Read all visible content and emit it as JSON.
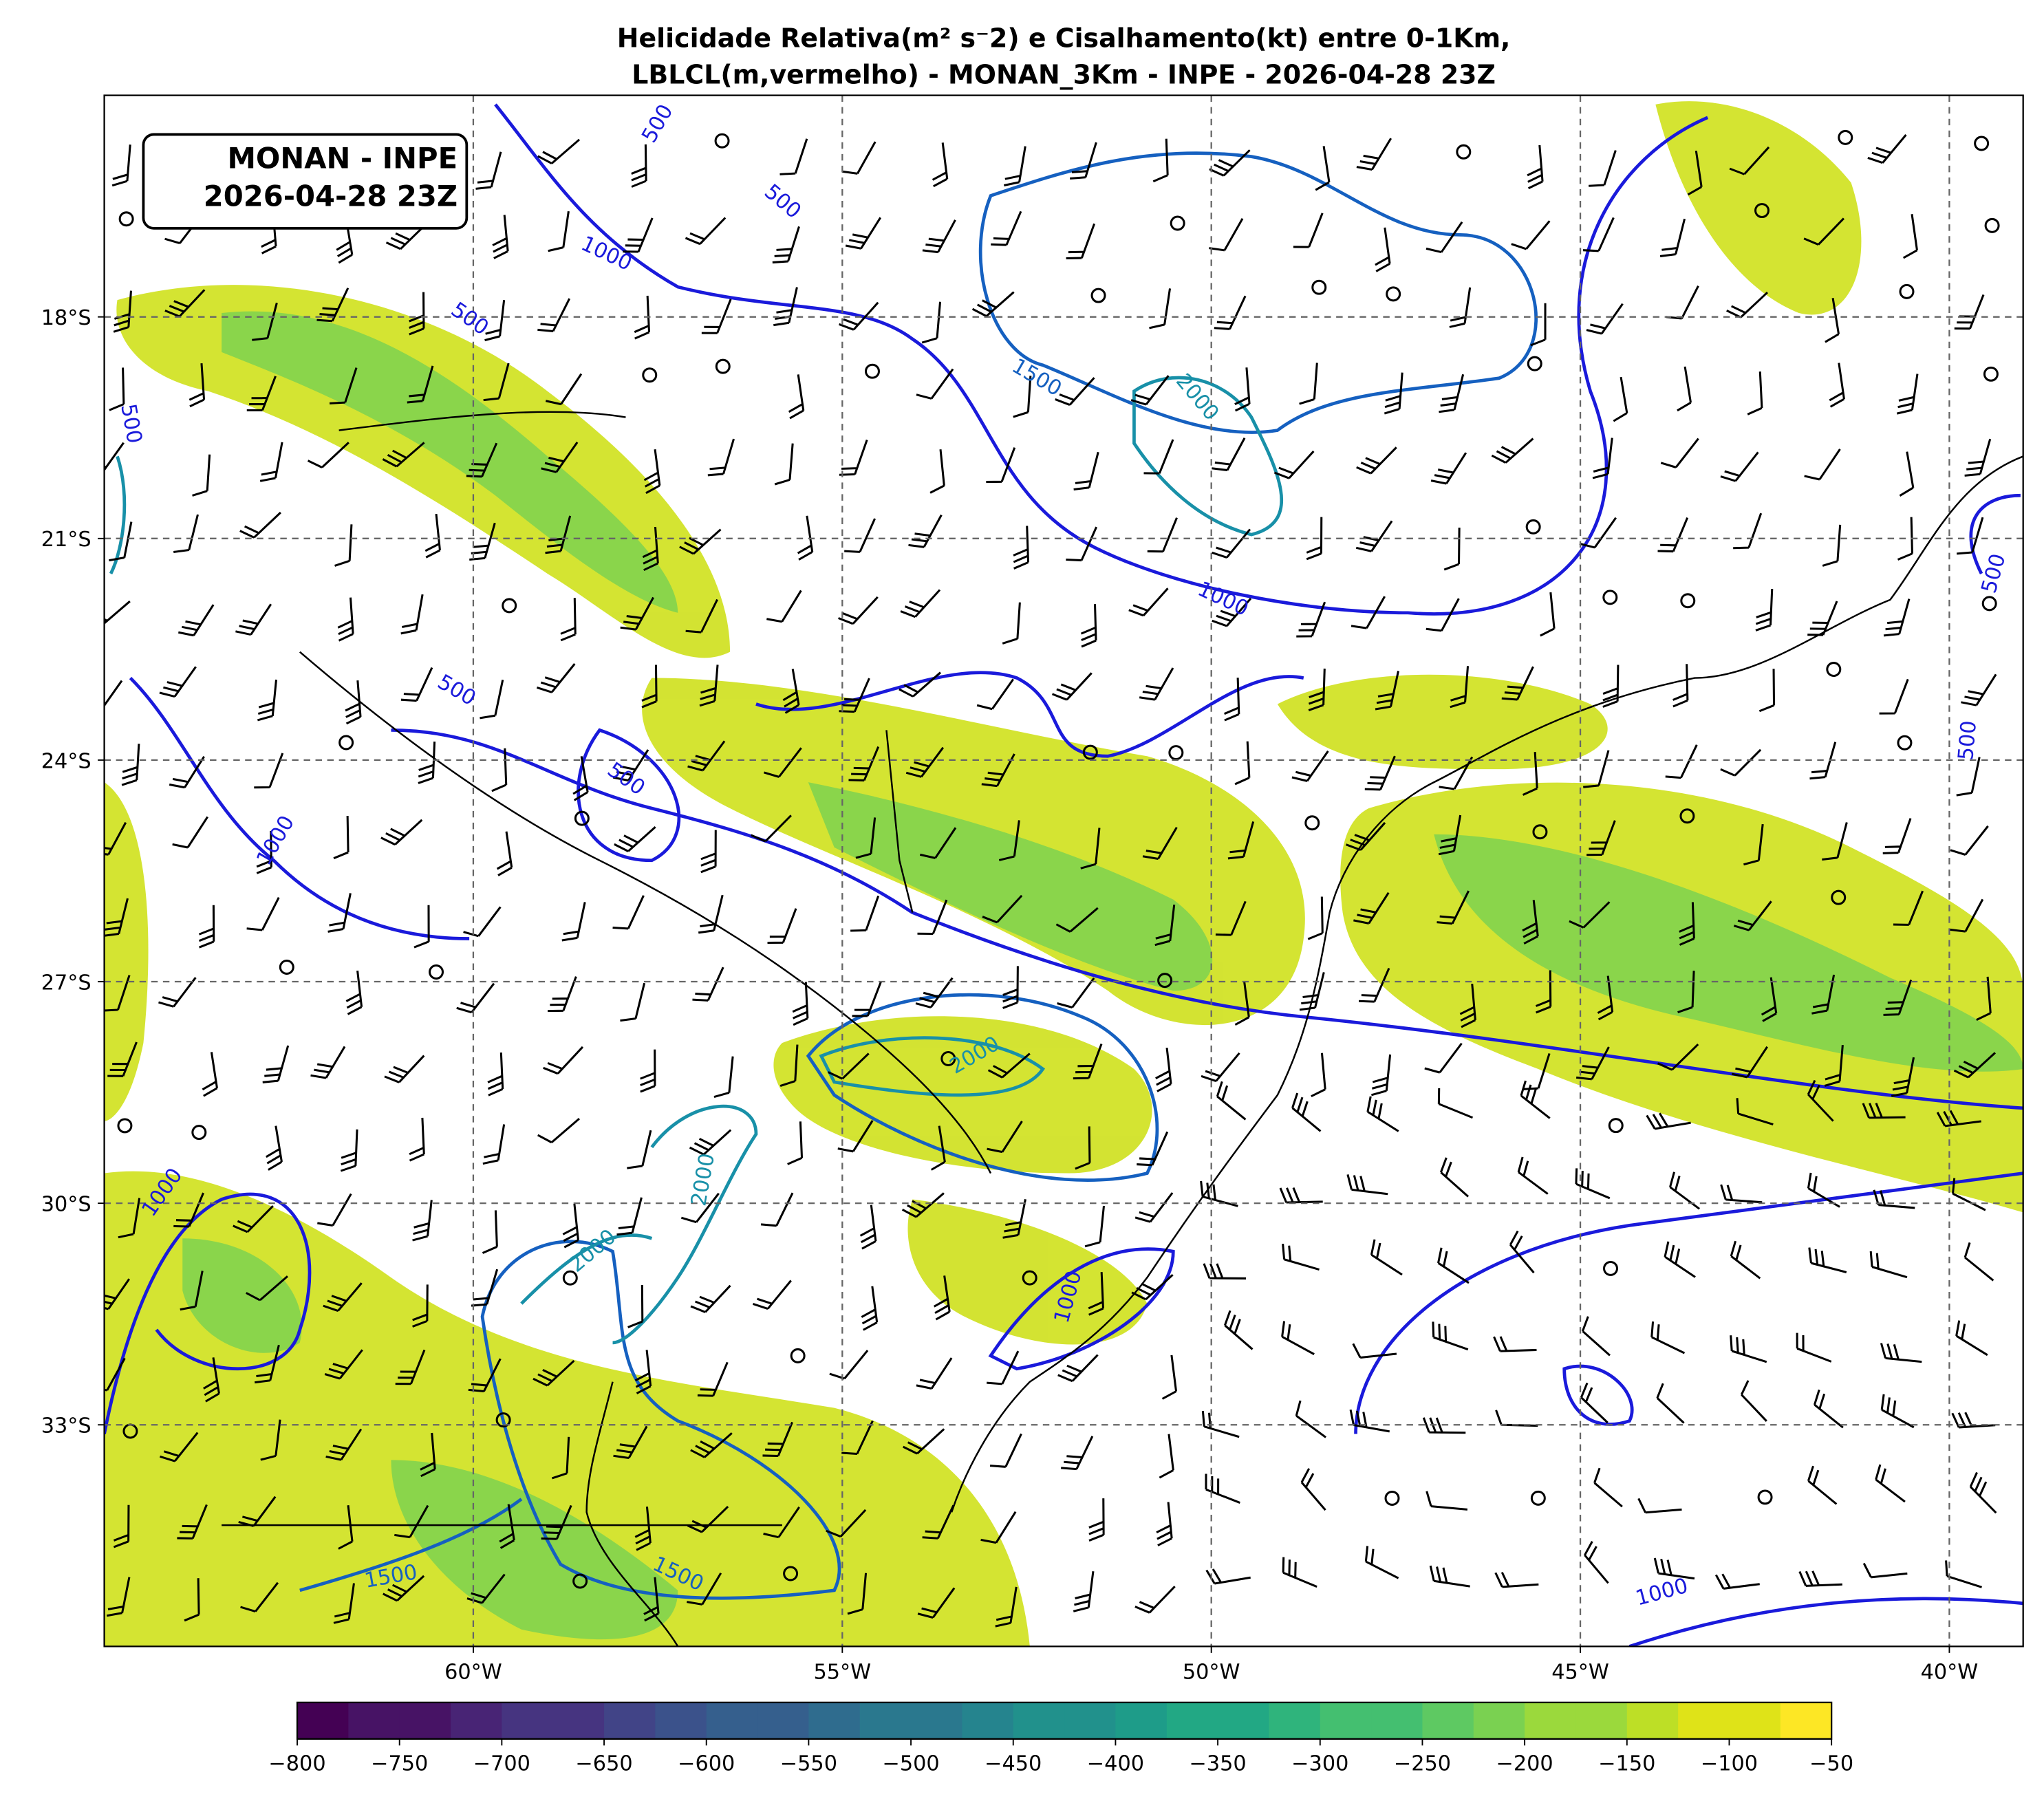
{
  "title": [
    "Helicidade Relativa(m² s⁻2) e Cisalhamento(kt) entre 0-1Km,",
    "LBLCL(m,vermelho) - MONAN_3Km - INPE - 2026-04-28 23Z"
  ],
  "annotation": [
    "MONAN - INPE",
    "2026-04-28 23Z"
  ],
  "map": {
    "xlim": [
      -65,
      -39
    ],
    "ylim": [
      -36,
      -15
    ],
    "xticks": [
      {
        "value": -60,
        "label": "60°W"
      },
      {
        "value": -55,
        "label": "55°W"
      },
      {
        "value": -50,
        "label": "50°W"
      },
      {
        "value": -45,
        "label": "45°W"
      },
      {
        "value": -40,
        "label": "40°W"
      }
    ],
    "yticks": [
      {
        "value": -18,
        "label": "18°S"
      },
      {
        "value": -21,
        "label": "21°S"
      },
      {
        "value": -24,
        "label": "24°S"
      },
      {
        "value": -27,
        "label": "27°S"
      },
      {
        "value": -30,
        "label": "30°S"
      },
      {
        "value": -33,
        "label": "33°S"
      }
    ],
    "contour_labels": [
      500,
      500,
      1000,
      500,
      500,
      1500,
      2000,
      1000,
      500,
      500,
      500,
      1000,
      500,
      2000,
      2000,
      1000,
      2000,
      1000,
      1500,
      1500,
      1000
    ]
  },
  "colorbar": {
    "lim": [
      -800,
      -50
    ],
    "ticks": [
      {
        "value": -800,
        "label": "−800"
      },
      {
        "value": -750,
        "label": "−750"
      },
      {
        "value": -700,
        "label": "−700"
      },
      {
        "value": -650,
        "label": "−650"
      },
      {
        "value": -600,
        "label": "−600"
      },
      {
        "value": -550,
        "label": "−550"
      },
      {
        "value": -500,
        "label": "−500"
      },
      {
        "value": -450,
        "label": "−450"
      },
      {
        "value": -400,
        "label": "−400"
      },
      {
        "value": -350,
        "label": "−350"
      },
      {
        "value": -300,
        "label": "−300"
      },
      {
        "value": -250,
        "label": "−250"
      },
      {
        "value": -200,
        "label": "−200"
      },
      {
        "value": -150,
        "label": "−150"
      },
      {
        "value": -100,
        "label": "−100"
      },
      {
        "value": -50,
        "label": "−50"
      }
    ]
  }
}
